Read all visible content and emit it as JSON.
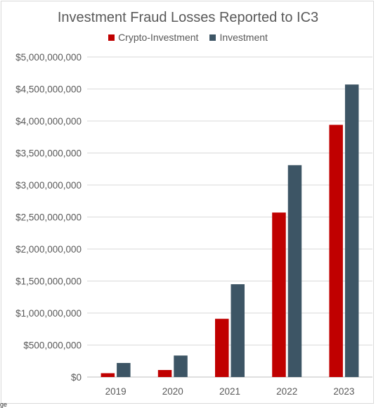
{
  "chart_data": {
    "type": "bar",
    "title": "Investment Fraud Losses Reported to IC3",
    "categories": [
      "2019",
      "2020",
      "2021",
      "2022",
      "2023"
    ],
    "series": [
      {
        "name": "Crypto-Investment",
        "color": "#c00000",
        "values": [
          60000000,
          110000000,
          910000000,
          2570000000,
          3940000000
        ]
      },
      {
        "name": "Investment",
        "color": "#3d5565",
        "values": [
          220000000,
          336000000,
          1450000000,
          3310000000,
          4570000000
        ]
      }
    ],
    "ylim": [
      0,
      5000000000
    ],
    "yticks": [
      0,
      500000000,
      1000000000,
      1500000000,
      2000000000,
      2500000000,
      3000000000,
      3500000000,
      4000000000,
      4500000000,
      5000000000
    ],
    "ytick_labels": [
      "$0",
      "$500,000,000",
      "$1,000,000,000",
      "$1,500,000,000",
      "$2,000,000,000",
      "$2,500,000,000",
      "$3,000,000,000",
      "$3,500,000,000",
      "$4,000,000,000",
      "$4,500,000,000",
      "$5,000,000,000"
    ],
    "xlabel": "",
    "ylabel": "",
    "grid": true,
    "legend_position": "top"
  },
  "footnote": "ge"
}
